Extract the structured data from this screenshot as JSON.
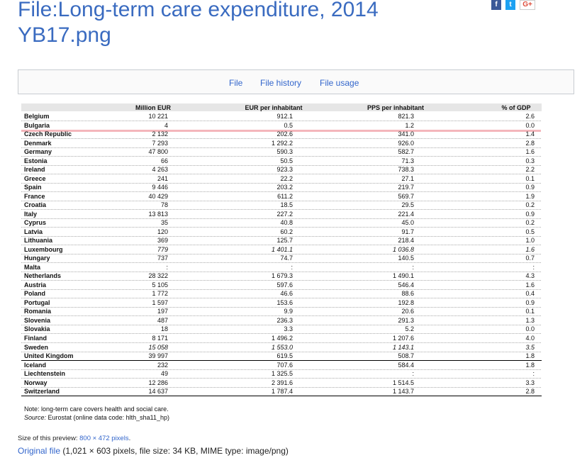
{
  "header": {
    "title_line1": "File:Long-term care expenditure, 2014",
    "title_line2": "YB17.png",
    "share": [
      "f",
      "t",
      "G+"
    ]
  },
  "tabs": [
    "File",
    "File history",
    "File usage"
  ],
  "table": {
    "columns": [
      "Million EUR",
      "EUR per inhabitant",
      "PPS per inhabitant",
      "% of GDP"
    ],
    "rows": [
      {
        "country": "Belgium",
        "cells": [
          "10 221",
          "912.1",
          "821.3",
          "2.6"
        ]
      },
      {
        "country": "Bulgaria",
        "cells": [
          "4",
          "0.5",
          "1.2",
          "0.0"
        ]
      },
      {
        "country": "Czech Republic",
        "cells": [
          "2 132",
          "202.6",
          "341.0",
          "1.4"
        ]
      },
      {
        "country": "Denmark",
        "cells": [
          "7 293",
          "1 292.2",
          "926.0",
          "2.8"
        ]
      },
      {
        "country": "Germany",
        "cells": [
          "47 800",
          "590.3",
          "582.7",
          "1.6"
        ]
      },
      {
        "country": "Estonia",
        "cells": [
          "66",
          "50.5",
          "71.3",
          "0.3"
        ]
      },
      {
        "country": "Ireland",
        "cells": [
          "4 263",
          "923.3",
          "738.3",
          "2.2"
        ]
      },
      {
        "country": "Greece",
        "cells": [
          "241",
          "22.2",
          "27.1",
          "0.1"
        ]
      },
      {
        "country": "Spain",
        "cells": [
          "9 446",
          "203.2",
          "219.7",
          "0.9"
        ]
      },
      {
        "country": "France",
        "cells": [
          "40 429",
          "611.2",
          "569.7",
          "1.9"
        ]
      },
      {
        "country": "Croatia",
        "cells": [
          "78",
          "18.5",
          "29.5",
          "0.2"
        ]
      },
      {
        "country": "Italy",
        "cells": [
          "13 813",
          "227.2",
          "221.4",
          "0.9"
        ]
      },
      {
        "country": "Cyprus",
        "cells": [
          "35",
          "40.8",
          "45.0",
          "0.2"
        ]
      },
      {
        "country": "Latvia",
        "cells": [
          "120",
          "60.2",
          "91.7",
          "0.5"
        ]
      },
      {
        "country": "Lithuania",
        "cells": [
          "369",
          "125.7",
          "218.4",
          "1.0"
        ]
      },
      {
        "country": "Luxembourg",
        "cells": [
          "779",
          "1 401.1",
          "1 036.8",
          "1.6"
        ],
        "style": "italic"
      },
      {
        "country": "Hungary",
        "cells": [
          "737",
          "74.7",
          "140.5",
          "0.7"
        ]
      },
      {
        "country": "Malta",
        "cells": [
          ":",
          ":",
          ":",
          ":"
        ]
      },
      {
        "country": "Netherlands",
        "cells": [
          "28 322",
          "1 679.3",
          "1 490.1",
          "4.3"
        ]
      },
      {
        "country": "Austria",
        "cells": [
          "5 105",
          "597.6",
          "546.4",
          "1.6"
        ]
      },
      {
        "country": "Poland",
        "cells": [
          "1 772",
          "46.6",
          "88.6",
          "0.4"
        ]
      },
      {
        "country": "Portugal",
        "cells": [
          "1 597",
          "153.6",
          "192.8",
          "0.9"
        ]
      },
      {
        "country": "Romania",
        "cells": [
          "197",
          "9.9",
          "20.6",
          "0.1"
        ]
      },
      {
        "country": "Slovenia",
        "cells": [
          "487",
          "236.3",
          "291.3",
          "1.3"
        ]
      },
      {
        "country": "Slovakia",
        "cells": [
          "18",
          "3.3",
          "5.2",
          "0.0"
        ]
      },
      {
        "country": "Finland",
        "cells": [
          "8 171",
          "1 496.2",
          "1 207.6",
          "4.0"
        ]
      },
      {
        "country": "Sweden",
        "cells": [
          "15 058",
          "1 553.0",
          "1 143.1",
          "3.5"
        ],
        "style": "italic"
      },
      {
        "country": "United Kingdom",
        "cells": [
          "39 997",
          "619.5",
          "508.7",
          "1.8"
        ]
      },
      {
        "country": "Iceland",
        "cells": [
          "232",
          "707.6",
          "584.4",
          "1.8"
        ]
      },
      {
        "country": "Liechtenstein",
        "cells": [
          "49",
          "1 325.5",
          ":",
          ":"
        ]
      },
      {
        "country": "Norway",
        "cells": [
          "12 286",
          "2 391.6",
          "1 514.5",
          "3.3"
        ]
      },
      {
        "country": "Switzerland",
        "cells": [
          "14 637",
          "1 787.4",
          "1 143.7",
          "2.8"
        ]
      }
    ],
    "note": "Note: long-term care covers health and social care.",
    "source_label": "Source:",
    "source_text": " Eurostat (online data code: hlth_sha11_hp)"
  },
  "footer": {
    "preview_label": "Size of this preview: ",
    "preview_link": "800 × 472 pixels",
    "preview_end": ".",
    "original_link": "Original file",
    "original_text": " (1,021 × 603 pixels, file size: 34 KB, MIME type: image/png)"
  }
}
